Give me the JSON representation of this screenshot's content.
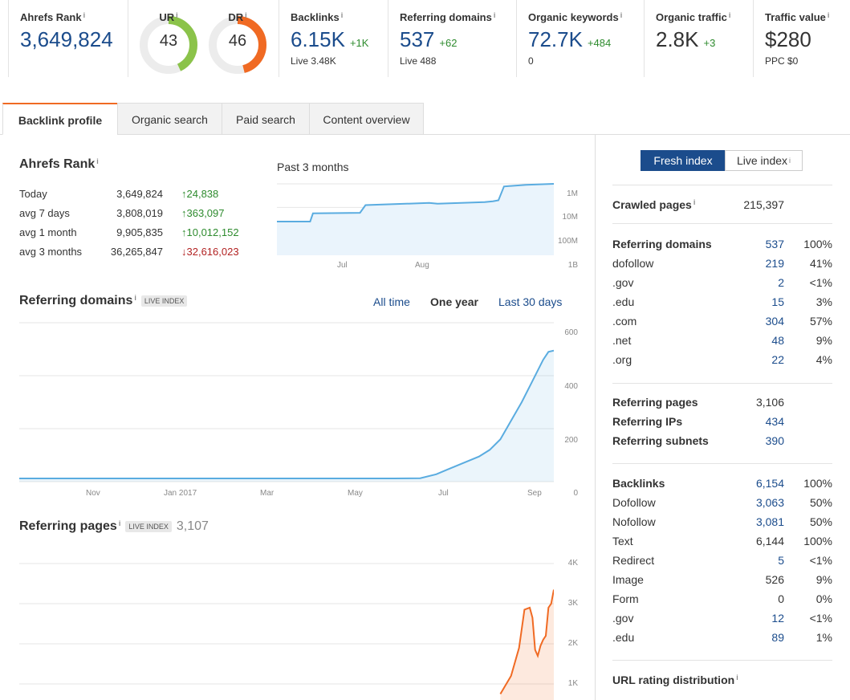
{
  "metrics": {
    "ahrefs_rank": {
      "label": "Ahrefs Rank",
      "value": "3,649,824"
    },
    "ur": {
      "label": "UR",
      "value": "43",
      "level": 0.43,
      "color": "#8bc34a"
    },
    "dr": {
      "label": "DR",
      "value": "46",
      "level": 0.46,
      "color": "#f06a23"
    },
    "backlinks": {
      "label": "Backlinks",
      "value": "6.15K",
      "delta": "+1K",
      "sub": "Live 3.48K"
    },
    "ref_domains": {
      "label": "Referring domains",
      "value": "537",
      "delta": "+62",
      "sub": "Live 488"
    },
    "organic_keywords": {
      "label": "Organic keywords",
      "value": "72.7K",
      "delta": "+484",
      "sub": "0"
    },
    "organic_traffic": {
      "label": "Organic traffic",
      "value": "2.8K",
      "delta": "+3"
    },
    "traffic_value": {
      "label": "Traffic value",
      "value": "$280",
      "sub": "PPC $0"
    }
  },
  "info_mark": "i",
  "tabs": [
    "Backlink profile",
    "Organic search",
    "Paid search",
    "Content overview"
  ],
  "rank_section": {
    "title": "Ahrefs Rank",
    "period": "Past 3 months",
    "rows": [
      {
        "label": "Today",
        "value": "3,649,824",
        "change": "↑24,838",
        "dir": "up"
      },
      {
        "label": "avg 7 days",
        "value": "3,808,019",
        "change": "↑363,097",
        "dir": "up"
      },
      {
        "label": "avg 1 month",
        "value": "9,905,835",
        "change": "↑10,012,152",
        "dir": "up"
      },
      {
        "label": "avg 3 months",
        "value": "36,265,847",
        "change": "↓32,616,023",
        "dir": "down"
      }
    ]
  },
  "ref_domains_section": {
    "title": "Referring domains",
    "badge": "LIVE INDEX",
    "ranges": [
      "All time",
      "One year",
      "Last 30 days"
    ],
    "selected_range": "One year"
  },
  "ref_pages_section": {
    "title": "Referring pages",
    "badge": "LIVE INDEX",
    "count": "3,107"
  },
  "chart_data": [
    {
      "type": "line",
      "name": "ahrefs-rank",
      "x_ticks": [
        "Jul",
        "Aug"
      ],
      "y_ticks": [
        "1M",
        "10M",
        "100M",
        "1B"
      ],
      "y_scale": "log",
      "ylim": [
        1000000,
        1000000000
      ],
      "x": [
        0,
        0.12,
        0.13,
        0.3,
        0.32,
        0.55,
        0.58,
        0.75,
        0.78,
        0.8,
        0.82,
        0.9,
        1.0
      ],
      "y": [
        40000000,
        40000000,
        18000000,
        17000000,
        8000000,
        6500000,
        7000000,
        6000000,
        5500000,
        5000000,
        1300000,
        1100000,
        1000000
      ]
    },
    {
      "type": "area",
      "name": "referring-domains",
      "x_ticks": [
        "Nov",
        "Jan 2017",
        "Mar",
        "May",
        "Jul",
        "Sep"
      ],
      "y_ticks": [
        "0",
        "200",
        "400",
        "600"
      ],
      "ylim": [
        0,
        600
      ],
      "grid": true,
      "x": [
        0,
        0.1,
        0.2,
        0.3,
        0.4,
        0.5,
        0.6,
        0.7,
        0.75,
        0.78,
        0.8,
        0.83,
        0.86,
        0.88,
        0.9,
        0.92,
        0.94,
        0.96,
        0.98,
        0.99,
        1.0
      ],
      "y": [
        12,
        12,
        12,
        12,
        12,
        12,
        12,
        12,
        13,
        28,
        45,
        70,
        95,
        120,
        160,
        230,
        300,
        380,
        460,
        490,
        495
      ],
      "color": "#5aace0"
    },
    {
      "type": "area",
      "name": "referring-pages",
      "y_ticks": [
        "1K",
        "2K",
        "3K",
        "4K"
      ],
      "ylim": [
        0,
        4000
      ],
      "grid": true,
      "x": [
        0.9,
        0.92,
        0.935,
        0.945,
        0.955,
        0.96,
        0.965,
        0.97,
        0.975,
        0.98,
        0.985,
        0.99,
        0.995,
        1.0
      ],
      "y": [
        750,
        1200,
        1900,
        2850,
        2900,
        2650,
        1850,
        1700,
        1950,
        2100,
        2200,
        2900,
        3000,
        3350
      ],
      "color": "#f06a23"
    }
  ],
  "index_toggle": {
    "fresh": "Fresh index",
    "live": "Live index"
  },
  "crawled": {
    "label": "Crawled pages",
    "value": "215,397"
  },
  "domains_block": [
    {
      "label": "Referring domains",
      "value": "537",
      "pct": "100%",
      "bold": true
    },
    {
      "label": "dofollow",
      "value": "219",
      "pct": "41%"
    },
    {
      "label": ".gov",
      "value": "2",
      "pct": "<1%"
    },
    {
      "label": ".edu",
      "value": "15",
      "pct": "3%"
    },
    {
      "label": ".com",
      "value": "304",
      "pct": "57%"
    },
    {
      "label": ".net",
      "value": "48",
      "pct": "9%"
    },
    {
      "label": ".org",
      "value": "22",
      "pct": "4%"
    }
  ],
  "pages_block": [
    {
      "label": "Referring pages",
      "value": "3,106",
      "link": false
    },
    {
      "label": "Referring IPs",
      "value": "434",
      "link": true
    },
    {
      "label": "Referring subnets",
      "value": "390",
      "link": true
    }
  ],
  "backlinks_block": [
    {
      "label": "Backlinks",
      "value": "6,154",
      "pct": "100%",
      "bold": true,
      "link": true
    },
    {
      "label": "Dofollow",
      "value": "3,063",
      "pct": "50%",
      "link": true
    },
    {
      "label": "Nofollow",
      "value": "3,081",
      "pct": "50%",
      "link": true
    },
    {
      "label": "Text",
      "value": "6,144",
      "pct": "100%",
      "link": false
    },
    {
      "label": "Redirect",
      "value": "5",
      "pct": "<1%",
      "link": true
    },
    {
      "label": "Image",
      "value": "526",
      "pct": "9%",
      "link": false
    },
    {
      "label": "Form",
      "value": "0",
      "pct": "0%",
      "link": false
    },
    {
      "label": ".gov",
      "value": "12",
      "pct": "<1%",
      "link": true
    },
    {
      "label": ".edu",
      "value": "89",
      "pct": "1%",
      "link": true
    }
  ],
  "url_rating": {
    "label": "URL rating distribution"
  }
}
